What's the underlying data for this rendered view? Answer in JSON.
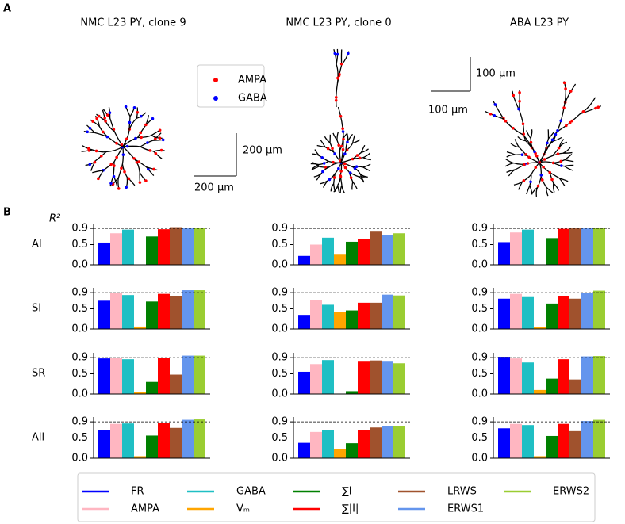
{
  "panel_labels": [
    "A",
    "B"
  ],
  "morphology": {
    "titles": [
      "NMC L23 PY, clone 9",
      "NMC L23 PY, clone 0",
      "ABA L23 PY"
    ],
    "legend": [
      {
        "name": "AMPA",
        "color": "#ff0000"
      },
      {
        "name": "GABA",
        "color": "#0000ff"
      }
    ],
    "scale_bars": [
      "200 μm",
      "200 μm",
      "100 μm",
      "100 μm"
    ]
  },
  "legend": [
    {
      "name": "FR",
      "color": "#0000ff"
    },
    {
      "name": "AMPA",
      "color": "#ffb6c1"
    },
    {
      "name": "GABA",
      "color": "#1fbfc4"
    },
    {
      "name": "Vₘ",
      "color": "#ffa500"
    },
    {
      "name": "∑I",
      "color": "#008000"
    },
    {
      "name": "∑|I|",
      "color": "#ff0000"
    },
    {
      "name": "LRWS",
      "color": "#a0522d"
    },
    {
      "name": "ERWS1",
      "color": "#6495ed"
    },
    {
      "name": "ERWS2",
      "color": "#9acd32"
    }
  ],
  "chart_data": [
    {
      "type": "bar",
      "ylabel": "R²",
      "row_label": "AI",
      "values": [
        0.55,
        0.78,
        0.87,
        null,
        0.7,
        0.88,
        0.93,
        0.9,
        0.91
      ],
      "ylim": [
        0,
        1.02
      ],
      "yticks": [
        {
          "value": 0,
          "label": "0.0"
        },
        0.5,
        0.9
      ],
      "reference_line": 0.9
    },
    {
      "type": "bar",
      "values": [
        0.22,
        0.5,
        0.67,
        0.25,
        0.57,
        0.64,
        0.82,
        0.73,
        0.78
      ],
      "ylim": [
        0,
        1.02
      ],
      "yticks": [
        {
          "value": 0,
          "label": "0.0"
        },
        0.5,
        0.9
      ],
      "reference_line": 0.9
    },
    {
      "type": "bar",
      "values": [
        0.56,
        0.8,
        0.87,
        null,
        0.66,
        0.89,
        0.9,
        0.9,
        0.91
      ],
      "ylim": [
        0,
        1.02
      ],
      "yticks": [
        {
          "value": 0,
          "label": "0.0"
        },
        0.5,
        0.9
      ],
      "reference_line": 0.9
    },
    {
      "type": "bar",
      "row_label": "SI",
      "values": [
        0.7,
        0.9,
        0.84,
        0.06,
        0.68,
        0.87,
        0.82,
        0.96,
        0.96
      ],
      "ylim": [
        0,
        1.02
      ],
      "yticks": [
        {
          "value": 0,
          "label": "0.0"
        },
        0.5,
        0.9
      ],
      "reference_line": 0.9
    },
    {
      "type": "bar",
      "values": [
        0.35,
        0.71,
        0.6,
        0.42,
        0.46,
        0.65,
        0.65,
        0.85,
        0.83
      ],
      "ylim": [
        0,
        1.02
      ],
      "yticks": [
        {
          "value": 0,
          "label": "0.0"
        },
        0.5,
        0.9
      ],
      "reference_line": 0.9
    },
    {
      "type": "bar",
      "values": [
        0.75,
        0.87,
        0.79,
        0.04,
        0.63,
        0.82,
        0.75,
        0.9,
        0.95
      ],
      "ylim": [
        0,
        1.02
      ],
      "yticks": [
        {
          "value": 0,
          "label": "0.0"
        },
        0.5,
        0.9
      ],
      "reference_line": 0.9
    },
    {
      "type": "bar",
      "row_label": "SR",
      "values": [
        0.88,
        0.9,
        0.86,
        0.04,
        0.3,
        0.9,
        0.48,
        0.95,
        0.95
      ],
      "ylim": [
        0,
        1.02
      ],
      "yticks": [
        {
          "value": 0,
          "label": "0.0"
        },
        0.5,
        0.9
      ],
      "reference_line": 0.9
    },
    {
      "type": "bar",
      "values": [
        0.55,
        0.74,
        0.84,
        null,
        0.07,
        0.8,
        0.83,
        0.8,
        0.76
      ],
      "ylim": [
        0,
        1.02
      ],
      "yticks": [
        {
          "value": 0,
          "label": "0.0"
        },
        0.5,
        0.9
      ],
      "reference_line": 0.9
    },
    {
      "type": "bar",
      "values": [
        0.92,
        0.88,
        0.78,
        0.1,
        0.38,
        0.86,
        0.36,
        0.93,
        0.94
      ],
      "ylim": [
        0,
        1.02
      ],
      "yticks": [
        {
          "value": 0,
          "label": "0.0"
        },
        0.5,
        0.9
      ],
      "reference_line": 0.9
    },
    {
      "type": "bar",
      "row_label": "All",
      "values": [
        0.7,
        0.85,
        0.86,
        0.05,
        0.56,
        0.88,
        0.75,
        0.95,
        0.96
      ],
      "ylim": [
        0,
        1.02
      ],
      "yticks": [
        {
          "value": 0,
          "label": "0.0"
        },
        0.5,
        0.9
      ],
      "reference_line": 0.9
    },
    {
      "type": "bar",
      "values": [
        0.38,
        0.65,
        0.7,
        0.22,
        0.37,
        0.7,
        0.76,
        0.79,
        0.79
      ],
      "ylim": [
        0,
        1.02
      ],
      "yticks": [
        {
          "value": 0,
          "label": "0.0"
        },
        0.5,
        0.9
      ],
      "reference_line": 0.9
    },
    {
      "type": "bar",
      "values": [
        0.74,
        0.85,
        0.82,
        0.05,
        0.55,
        0.85,
        0.67,
        0.92,
        0.95
      ],
      "ylim": [
        0,
        1.02
      ],
      "yticks": [
        {
          "value": 0,
          "label": "0.0"
        },
        0.5,
        0.9
      ],
      "reference_line": 0.9
    }
  ]
}
